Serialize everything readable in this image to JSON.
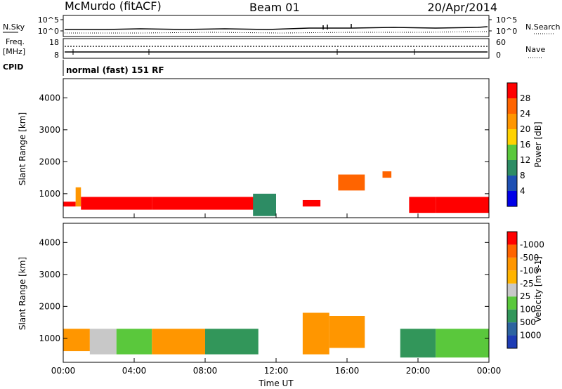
{
  "header": {
    "station": "McMurdo (fitACF)",
    "beam": "Beam 01",
    "date": "20/Apr/2014"
  },
  "top_panel": {
    "left_label": "N.Sky",
    "left_ticks": [
      "10^5",
      "10^0"
    ],
    "right_label": "N.Search",
    "right_ticks": [
      "10^5",
      "10^0"
    ]
  },
  "freq_panel": {
    "left_label_line1": "Freq.",
    "left_label_line2": "[MHz]",
    "left_ticks": [
      "18",
      "8"
    ],
    "right_label": "Nave",
    "right_ticks": [
      "60",
      "0"
    ]
  },
  "cpid": {
    "label": "CPID",
    "mode": "normal (fast) 151 RF"
  },
  "chart_data": [
    {
      "type": "heatmap",
      "name": "power",
      "ylabel": "Slant Range [km]",
      "ylim": [
        250,
        4600
      ],
      "yticks": [
        "1000",
        "2000",
        "3000",
        "4000"
      ],
      "colorbar": {
        "label": "Power [dB]",
        "levels": [
          "4",
          "8",
          "12",
          "16",
          "20",
          "24",
          "28"
        ],
        "colors": [
          "#0000e8",
          "#1e50b4",
          "#2d8c64",
          "#5ac83c",
          "#ffd200",
          "#ff9600",
          "#ff6400",
          "#ff0000"
        ]
      },
      "bands": [
        {
          "t0": 0.0,
          "t1": 0.7,
          "r0": 600,
          "r1": 750,
          "c": "#ff0000"
        },
        {
          "t0": 0.7,
          "t1": 1.0,
          "r0": 600,
          "r1": 1200,
          "c": "#ff9600"
        },
        {
          "t0": 1.0,
          "t1": 5.0,
          "r0": 500,
          "r1": 900,
          "c": "#ff0000"
        },
        {
          "t0": 5.0,
          "t1": 12.0,
          "r0": 500,
          "r1": 900,
          "c": "#ff0000"
        },
        {
          "t0": 10.7,
          "t1": 12.0,
          "r0": 300,
          "r1": 1000,
          "c": "#2d8c64"
        },
        {
          "t0": 13.5,
          "t1": 14.5,
          "r0": 600,
          "r1": 800,
          "c": "#ff0000"
        },
        {
          "t0": 15.5,
          "t1": 17.0,
          "r0": 1100,
          "r1": 1600,
          "c": "#ff6400"
        },
        {
          "t0": 18.0,
          "t1": 18.5,
          "r0": 1500,
          "r1": 1700,
          "c": "#ff6400"
        },
        {
          "t0": 19.5,
          "t1": 21.0,
          "r0": 400,
          "r1": 900,
          "c": "#ff0000"
        },
        {
          "t0": 21.0,
          "t1": 24.0,
          "r0": 400,
          "r1": 900,
          "c": "#ff0000"
        }
      ]
    },
    {
      "type": "heatmap",
      "name": "velocity",
      "xlabel": "Time UT",
      "ylabel": "Slant Range [km]",
      "xlim": [
        0,
        24
      ],
      "xticks": [
        "00:00",
        "04:00",
        "08:00",
        "12:00",
        "16:00",
        "20:00",
        "00:00"
      ],
      "ylim": [
        250,
        4600
      ],
      "yticks": [
        "1000",
        "2000",
        "3000",
        "4000"
      ],
      "colorbar": {
        "label": "Velocity [m s-1]",
        "levels": [
          "1000",
          "500",
          "100",
          "25",
          "-25",
          "-100",
          "-500",
          "-1000"
        ],
        "colors": [
          "#1e3cb4",
          "#2d64a0",
          "#32965a",
          "#5ac83c",
          "#c8c8c8",
          "#ffb400",
          "#ff9600",
          "#ff6400",
          "#ff0000"
        ]
      },
      "bands": [
        {
          "t0": 0.0,
          "t1": 1.5,
          "r0": 600,
          "r1": 1300,
          "c": "#ff9600"
        },
        {
          "t0": 1.5,
          "t1": 3.0,
          "r0": 500,
          "r1": 1300,
          "c": "#c8c8c8"
        },
        {
          "t0": 3.0,
          "t1": 5.0,
          "r0": 500,
          "r1": 1300,
          "c": "#5ac83c"
        },
        {
          "t0": 5.0,
          "t1": 8.0,
          "r0": 500,
          "r1": 1300,
          "c": "#ff9600"
        },
        {
          "t0": 8.0,
          "t1": 11.0,
          "r0": 500,
          "r1": 1300,
          "c": "#32965a"
        },
        {
          "t0": 13.5,
          "t1": 15.0,
          "r0": 500,
          "r1": 1800,
          "c": "#ff9600"
        },
        {
          "t0": 15.0,
          "t1": 17.0,
          "r0": 700,
          "r1": 1700,
          "c": "#ff9600"
        },
        {
          "t0": 19.0,
          "t1": 21.0,
          "r0": 400,
          "r1": 1300,
          "c": "#32965a"
        },
        {
          "t0": 21.0,
          "t1": 24.0,
          "r0": 400,
          "r1": 1300,
          "c": "#5ac83c"
        }
      ]
    }
  ]
}
